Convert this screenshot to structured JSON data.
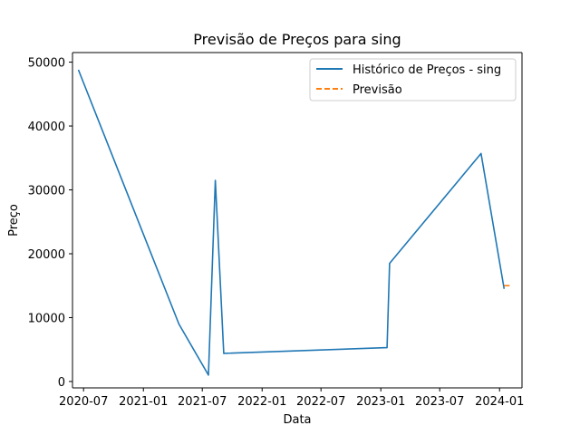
{
  "chart_data": {
    "type": "line",
    "title": "Previsão de Preços para sing",
    "xlabel": "Data",
    "ylabel": "Preço",
    "x_ticks": [
      "2020-07",
      "2021-01",
      "2021-07",
      "2022-01",
      "2022-07",
      "2023-01",
      "2023-07",
      "2024-01"
    ],
    "y_ticks": [
      0,
      10000,
      20000,
      30000,
      40000,
      50000
    ],
    "xlim": [
      "2020-05-28",
      "2024-03-10"
    ],
    "ylim": [
      -1000,
      51500
    ],
    "grid": false,
    "legend_position": "top-right",
    "series": [
      {
        "name": "Histórico de Preços - sing",
        "color": "#1f77b4",
        "style": "solid",
        "points": [
          {
            "x": "2020-06-15",
            "y": 48800
          },
          {
            "x": "2021-04-20",
            "y": 9000
          },
          {
            "x": "2021-07-20",
            "y": 1000
          },
          {
            "x": "2021-08-10",
            "y": 31500
          },
          {
            "x": "2021-09-05",
            "y": 4400
          },
          {
            "x": "2023-01-20",
            "y": 5300
          },
          {
            "x": "2023-01-28",
            "y": 18500
          },
          {
            "x": "2023-11-05",
            "y": 35700
          },
          {
            "x": "2024-01-15",
            "y": 14500
          }
        ]
      },
      {
        "name": "Previsão",
        "color": "#ff7f0e",
        "style": "dashed",
        "points": [
          {
            "x": "2024-01-15",
            "y": 15000
          },
          {
            "x": "2024-02-05",
            "y": 15000
          }
        ]
      }
    ]
  }
}
